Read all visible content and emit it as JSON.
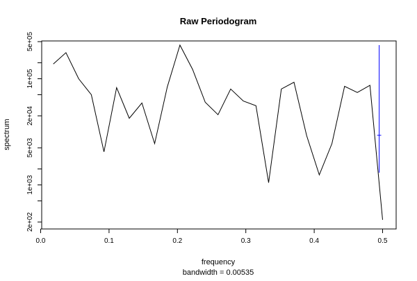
{
  "chart_data": {
    "type": "line",
    "title": "Raw Periodogram",
    "xlabel": "frequency",
    "subtitle": "bandwidth = 0.00535",
    "ylabel": "spectrum",
    "log_y": true,
    "xlim": [
      0.0,
      0.5
    ],
    "ylim": [
      200,
      500000
    ],
    "x_ticks": [
      {
        "value": 0.0,
        "label": "0.0"
      },
      {
        "value": 0.1,
        "label": "0.1"
      },
      {
        "value": 0.2,
        "label": "0.2"
      },
      {
        "value": 0.3,
        "label": "0.3"
      },
      {
        "value": 0.4,
        "label": "0.4"
      },
      {
        "value": 0.5,
        "label": "0.5"
      }
    ],
    "y_ticks": [
      {
        "value": 200,
        "label": "2e+02"
      },
      {
        "value": 500,
        "label": ""
      },
      {
        "value": 1000,
        "label": "1e+03"
      },
      {
        "value": 2000,
        "label": ""
      },
      {
        "value": 5000,
        "label": "5e+03"
      },
      {
        "value": 20000,
        "label": "2e+04"
      },
      {
        "value": 50000,
        "label": ""
      },
      {
        "value": 100000,
        "label": "1e+05"
      },
      {
        "value": 200000,
        "label": ""
      },
      {
        "value": 500000,
        "label": "5e+05"
      }
    ],
    "series": [
      {
        "color": "#000000",
        "x": [
          0.0185,
          0.037,
          0.0556,
          0.0741,
          0.0926,
          0.1111,
          0.1296,
          0.1481,
          0.1667,
          0.1852,
          0.2037,
          0.2222,
          0.2407,
          0.2593,
          0.2778,
          0.2963,
          0.3148,
          0.3333,
          0.3519,
          0.3704,
          0.3889,
          0.4074,
          0.4259,
          0.4444,
          0.463,
          0.4815,
          0.5
        ],
        "y": [
          190000,
          310000,
          100000,
          50000,
          4200,
          68000,
          18000,
          35000,
          6000,
          70000,
          430000,
          150000,
          36000,
          21000,
          64000,
          38000,
          31000,
          1100,
          64000,
          86000,
          8500,
          1550,
          6000,
          72000,
          55000,
          75000,
          220
        ]
      }
    ],
    "bandwidth_marker": {
      "color": "#0000ff",
      "x": 0.495,
      "y_low": 1700,
      "y_high": 430000,
      "y_center": 8600,
      "cross_halfwidth": 0.003
    }
  }
}
